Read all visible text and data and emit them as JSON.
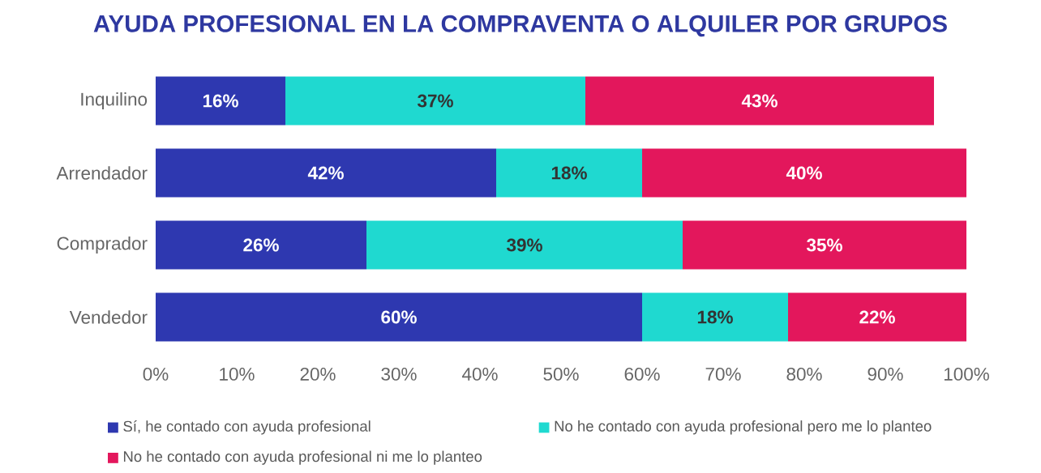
{
  "chart_data": {
    "type": "bar",
    "title": "AYUDA PROFESIONAL EN LA COMPRAVENTA O ALQUILER POR GRUPOS",
    "orientation": "horizontal",
    "stacked": true,
    "legend": "bottom",
    "categories": [
      "Inquilino",
      "Arrendador",
      "Comprador",
      "Vendedor"
    ],
    "xlim": [
      0,
      100
    ],
    "xticks": [
      {
        "value": 0,
        "label": "0%"
      },
      {
        "value": 10,
        "label": "10%"
      },
      {
        "value": 20,
        "label": "20%"
      },
      {
        "value": 30,
        "label": "30%"
      },
      {
        "value": 40,
        "label": "40%"
      },
      {
        "value": 50,
        "label": "50%"
      },
      {
        "value": 60,
        "label": "60%"
      },
      {
        "value": 70,
        "label": "70%"
      },
      {
        "value": 80,
        "label": "80%"
      },
      {
        "value": 90,
        "label": "90%"
      },
      {
        "value": 100,
        "label": "100%"
      }
    ],
    "series": [
      {
        "name": "Sí, he contado con ayuda profesional",
        "color": "#2e38b0",
        "values": [
          16,
          42,
          26,
          60
        ],
        "value_labels": [
          "16%",
          "42%",
          "26%",
          "60%"
        ]
      },
      {
        "name": "No he contado con ayuda profesional pero me lo planteo",
        "color": "#1fd9d0",
        "values": [
          37,
          18,
          39,
          18
        ],
        "value_labels": [
          "37%",
          "18%",
          "39%",
          "18%"
        ]
      },
      {
        "name": "No he contado con ayuda profesional ni me lo planteo",
        "color": "#e3175c",
        "values": [
          43,
          40,
          35,
          22
        ],
        "value_labels": [
          "43%",
          "40%",
          "35%",
          "22%"
        ]
      }
    ]
  }
}
